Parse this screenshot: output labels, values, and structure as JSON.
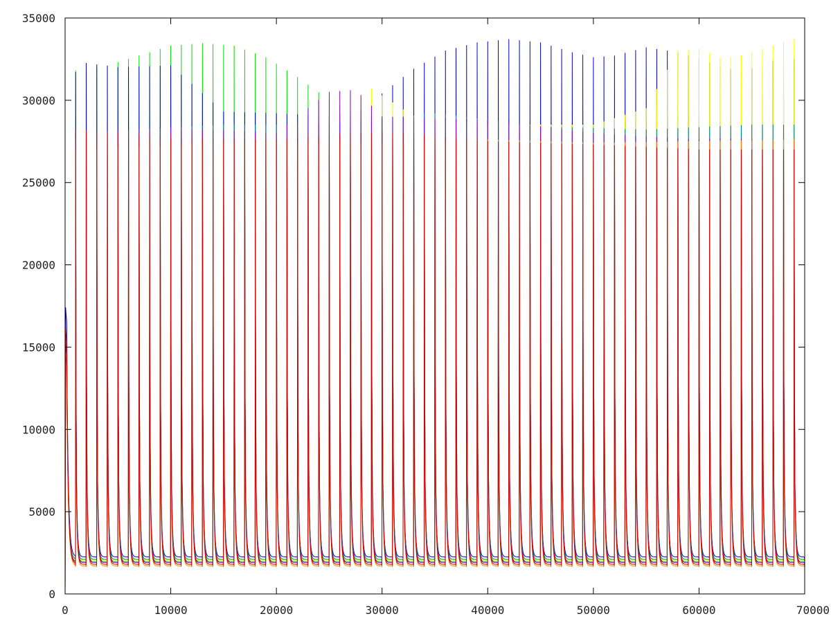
{
  "chart_data": {
    "type": "line",
    "xlim": [
      0,
      70000
    ],
    "ylim": [
      0,
      35000
    ],
    "xticks": [
      0,
      10000,
      20000,
      30000,
      40000,
      50000,
      60000,
      70000
    ],
    "yticks": [
      0,
      5000,
      10000,
      15000,
      20000,
      25000,
      30000,
      35000
    ],
    "xtick_labels": [
      "0",
      "10000",
      "20000",
      "30000",
      "40000",
      "50000",
      "60000",
      "70000"
    ],
    "ytick_labels": [
      "0",
      "5000",
      "10000",
      "15000",
      "20000",
      "25000",
      "30000",
      "35000"
    ],
    "grid": false,
    "legend": "none",
    "period": 1000,
    "first_spike_x": 1000,
    "last_spike_x": 69000,
    "series": [
      {
        "color": "#00dd00",
        "start_value": 15500,
        "spike_peaks": [
          [
            1000,
            31800
          ],
          [
            4000,
            32100
          ],
          [
            7000,
            32700
          ],
          [
            10000,
            33300
          ],
          [
            13000,
            33450
          ],
          [
            16000,
            33300
          ],
          [
            19000,
            32600
          ],
          [
            22000,
            31400
          ],
          [
            25000,
            30000
          ],
          [
            28000,
            29200
          ],
          [
            31000,
            28800
          ],
          [
            34000,
            28800
          ],
          [
            37000,
            28800
          ],
          [
            40000,
            28800
          ],
          [
            43000,
            28800
          ],
          [
            46000,
            28700
          ],
          [
            49000,
            28600
          ],
          [
            52000,
            28600
          ],
          [
            55000,
            28800
          ],
          [
            58000,
            29000
          ],
          [
            61000,
            28800
          ],
          [
            64000,
            28700
          ],
          [
            67000,
            28800
          ],
          [
            69000,
            28700
          ]
        ],
        "secondary_peaks": [
          [
            1000,
            12800
          ],
          [
            20000,
            13000
          ],
          [
            40000,
            13500
          ],
          [
            60000,
            13000
          ],
          [
            69000,
            12800
          ]
        ],
        "baseline": [
          [
            0,
            1950
          ],
          [
            70000,
            1950
          ]
        ]
      },
      {
        "color": "#0000cc",
        "start_value": 17400,
        "spike_peaks": [
          [
            1000,
            31700
          ],
          [
            2000,
            32250
          ],
          [
            5000,
            32000
          ],
          [
            10000,
            32100
          ],
          [
            15000,
            29300
          ],
          [
            20000,
            29200
          ],
          [
            25000,
            29000
          ],
          [
            28000,
            29400
          ],
          [
            30000,
            30400
          ],
          [
            33000,
            31900
          ],
          [
            36000,
            33000
          ],
          [
            39000,
            33500
          ],
          [
            42000,
            33700
          ],
          [
            45000,
            33500
          ],
          [
            48000,
            32900
          ],
          [
            50000,
            32600
          ],
          [
            52000,
            32700
          ],
          [
            55000,
            33200
          ],
          [
            58000,
            32900
          ],
          [
            61000,
            32300
          ],
          [
            64000,
            31700
          ],
          [
            67000,
            32400
          ],
          [
            69000,
            32500
          ]
        ],
        "secondary_peaks": [
          [
            1000,
            13200
          ],
          [
            20000,
            12800
          ],
          [
            40000,
            13600
          ],
          [
            60000,
            13300
          ],
          [
            69000,
            13000
          ]
        ],
        "baseline": [
          [
            0,
            2250
          ],
          [
            70000,
            2250
          ]
        ]
      },
      {
        "color": "#ffff00",
        "start_value": 15000,
        "spike_peaks": [
          [
            1000,
            27500
          ],
          [
            10000,
            27500
          ],
          [
            20000,
            28000
          ],
          [
            27000,
            30000
          ],
          [
            29000,
            30700
          ],
          [
            33000,
            29000
          ],
          [
            40000,
            28500
          ],
          [
            50000,
            28500
          ],
          [
            55000,
            29500
          ],
          [
            58000,
            33000
          ],
          [
            60000,
            33100
          ],
          [
            62000,
            32600
          ],
          [
            64000,
            32700
          ],
          [
            66000,
            33100
          ],
          [
            68000,
            33500
          ],
          [
            69000,
            33700
          ]
        ],
        "secondary_peaks": [
          [
            1000,
            12000
          ],
          [
            35000,
            12500
          ],
          [
            69000,
            12200
          ]
        ],
        "baseline": [
          [
            0,
            2050
          ],
          [
            70000,
            2050
          ]
        ]
      },
      {
        "color": "#008888",
        "start_value": 14500,
        "spike_peaks": [
          [
            1000,
            28000
          ],
          [
            15000,
            28500
          ],
          [
            25000,
            28500
          ],
          [
            35000,
            29200
          ],
          [
            45000,
            28400
          ],
          [
            55000,
            28200
          ],
          [
            65000,
            28500
          ],
          [
            69000,
            28500
          ]
        ],
        "secondary_peaks": [
          [
            1000,
            11800
          ],
          [
            35000,
            12300
          ],
          [
            69000,
            12100
          ]
        ],
        "baseline": [
          [
            0,
            2100
          ],
          [
            70000,
            2100
          ]
        ]
      },
      {
        "color": "#8800cc",
        "start_value": 15300,
        "spike_peaks": [
          [
            1000,
            28000
          ],
          [
            10000,
            28300
          ],
          [
            20000,
            28000
          ],
          [
            25000,
            30500
          ],
          [
            27000,
            30600
          ],
          [
            28000,
            30300
          ],
          [
            30000,
            29000
          ],
          [
            40000,
            28800
          ],
          [
            50000,
            28000
          ],
          [
            60000,
            27600
          ],
          [
            62000,
            27700
          ],
          [
            69000,
            27500
          ]
        ],
        "secondary_peaks": [
          [
            1000,
            12300
          ],
          [
            30000,
            12800
          ],
          [
            60000,
            12600
          ],
          [
            69000,
            12400
          ]
        ],
        "baseline": [
          [
            0,
            1900
          ],
          [
            70000,
            1900
          ]
        ]
      },
      {
        "color": "#ff8800",
        "start_value": 14200,
        "spike_peaks": [
          [
            1000,
            27000
          ],
          [
            10000,
            27200
          ],
          [
            20000,
            27500
          ],
          [
            30000,
            27300
          ],
          [
            40000,
            27600
          ],
          [
            50000,
            27400
          ],
          [
            60000,
            27500
          ],
          [
            69000,
            27600
          ]
        ],
        "secondary_peaks": [
          [
            1000,
            11000
          ],
          [
            30000,
            11500
          ],
          [
            69000,
            11200
          ]
        ],
        "baseline": [
          [
            0,
            1700
          ],
          [
            70000,
            1700
          ]
        ]
      },
      {
        "color": "#cc0000",
        "start_value": 16100,
        "spike_peaks": [
          [
            1000,
            28200
          ],
          [
            10000,
            27700
          ],
          [
            20000,
            27600
          ],
          [
            30000,
            28100
          ],
          [
            40000,
            27500
          ],
          [
            50000,
            27300
          ],
          [
            60000,
            27000
          ],
          [
            69000,
            27000
          ]
        ],
        "secondary_peaks": [
          [
            1000,
            12500
          ],
          [
            30000,
            12300
          ],
          [
            69000,
            12600
          ]
        ],
        "baseline": [
          [
            0,
            1800
          ],
          [
            70000,
            1800
          ]
        ]
      }
    ]
  }
}
